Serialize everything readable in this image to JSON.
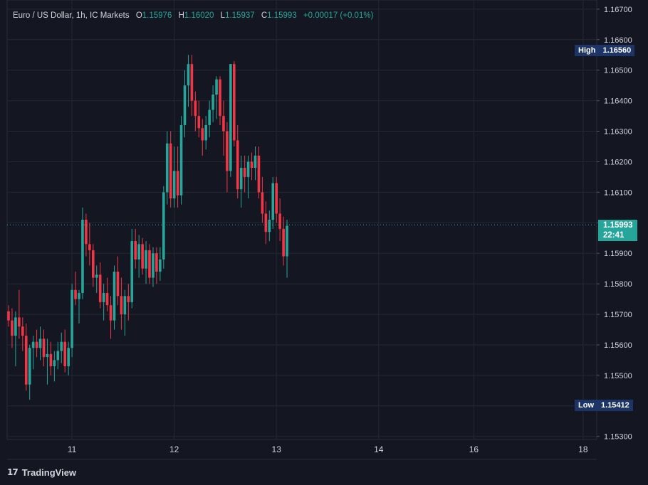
{
  "legend": {
    "symbol": "Euro / US Dollar, 1h, IC Markets",
    "o_key": "O",
    "o_val": "1.15976",
    "h_key": "H",
    "h_val": "1.16020",
    "l_key": "L",
    "l_val": "1.15937",
    "c_key": "C",
    "c_val": "1.15993",
    "change": "+0.00017 (+0.01%)"
  },
  "badges": {
    "high_label": "High",
    "high_value": "1.16560",
    "low_label": "Low",
    "low_value": "1.15412",
    "last_price": "1.15993",
    "countdown": "22:41"
  },
  "footer": {
    "logo_icon": "tradingview-logo-icon",
    "brand": "TradingView"
  },
  "colors": {
    "up": "#26a69a",
    "down": "#f23645",
    "background": "#141722",
    "grid": "#242833",
    "axis_text": "#d1d4dc"
  },
  "chart_data": {
    "type": "candlestick",
    "title": "Euro / US Dollar, 1h, IC Markets",
    "y_tick_labels": [
      "1.15300",
      "1.15400",
      "1.15500",
      "1.15600",
      "1.15700",
      "1.15800",
      "1.15900",
      "1.16000",
      "1.16100",
      "1.16200",
      "1.16300",
      "1.16400",
      "1.16500",
      "1.16600",
      "1.16700"
    ],
    "x_tick_labels": [
      "11",
      "12",
      "13",
      "14",
      "16",
      "18"
    ],
    "x_tick_index": [
      18,
      47,
      76,
      105,
      132,
      163
    ],
    "ylim": [
      1.1529,
      1.1673
    ],
    "current_price": 1.15993,
    "grid": true,
    "candles": [
      [
        1.1571,
        1.1573,
        1.1566,
        1.1568
      ],
      [
        1.1568,
        1.1572,
        1.1559,
        1.1563
      ],
      [
        1.1563,
        1.1571,
        1.1553,
        1.1569
      ],
      [
        1.1569,
        1.1578,
        1.1562,
        1.1566
      ],
      [
        1.1566,
        1.1569,
        1.1558,
        1.1563
      ],
      [
        1.1563,
        1.1567,
        1.1545,
        1.1547
      ],
      [
        1.1547,
        1.156,
        1.1542,
        1.1559
      ],
      [
        1.1559,
        1.1563,
        1.1552,
        1.1561
      ],
      [
        1.1561,
        1.1565,
        1.1556,
        1.1559
      ],
      [
        1.1559,
        1.1566,
        1.1555,
        1.1562
      ],
      [
        1.1562,
        1.1565,
        1.1553,
        1.1556
      ],
      [
        1.1556,
        1.1562,
        1.1547,
        1.1557
      ],
      [
        1.1557,
        1.1561,
        1.155,
        1.1553
      ],
      [
        1.1553,
        1.1558,
        1.1548,
        1.1555
      ],
      [
        1.1555,
        1.1561,
        1.1552,
        1.1558
      ],
      [
        1.1558,
        1.1564,
        1.1554,
        1.1561
      ],
      [
        1.1561,
        1.1565,
        1.1551,
        1.1553
      ],
      [
        1.1553,
        1.1561,
        1.155,
        1.1559
      ],
      [
        1.1559,
        1.158,
        1.1556,
        1.1578
      ],
      [
        1.1578,
        1.1584,
        1.1573,
        1.1575
      ],
      [
        1.1575,
        1.1578,
        1.1567,
        1.1577
      ],
      [
        1.1577,
        1.1605,
        1.1575,
        1.1601
      ],
      [
        1.1601,
        1.1603,
        1.1589,
        1.1593
      ],
      [
        1.1593,
        1.16,
        1.1586,
        1.1591
      ],
      [
        1.1591,
        1.1593,
        1.1579,
        1.1582
      ],
      [
        1.1582,
        1.1586,
        1.1577,
        1.1583
      ],
      [
        1.1583,
        1.1587,
        1.1572,
        1.1574
      ],
      [
        1.1574,
        1.158,
        1.1568,
        1.1577
      ],
      [
        1.1577,
        1.1582,
        1.1571,
        1.1573
      ],
      [
        1.1573,
        1.1576,
        1.1562,
        1.1568
      ],
      [
        1.1568,
        1.1586,
        1.1565,
        1.1584
      ],
      [
        1.1584,
        1.1589,
        1.1573,
        1.1576
      ],
      [
        1.1576,
        1.1582,
        1.1565,
        1.157
      ],
      [
        1.157,
        1.1578,
        1.1563,
        1.1576
      ],
      [
        1.1576,
        1.158,
        1.1568,
        1.1574
      ],
      [
        1.1574,
        1.1598,
        1.1572,
        1.1594
      ],
      [
        1.1594,
        1.1598,
        1.1585,
        1.1588
      ],
      [
        1.1588,
        1.1596,
        1.1582,
        1.1593
      ],
      [
        1.1593,
        1.1595,
        1.1583,
        1.1585
      ],
      [
        1.1585,
        1.1594,
        1.158,
        1.1591
      ],
      [
        1.1591,
        1.1593,
        1.158,
        1.1582
      ],
      [
        1.1582,
        1.1592,
        1.1579,
        1.159
      ],
      [
        1.159,
        1.1592,
        1.158,
        1.1584
      ],
      [
        1.1584,
        1.1592,
        1.1581,
        1.1588
      ],
      [
        1.1588,
        1.1612,
        1.1585,
        1.161
      ],
      [
        1.161,
        1.163,
        1.1606,
        1.1626
      ],
      [
        1.1626,
        1.163,
        1.1605,
        1.1608
      ],
      [
        1.1608,
        1.1625,
        1.1605,
        1.1617
      ],
      [
        1.1617,
        1.1625,
        1.1605,
        1.1609
      ],
      [
        1.1609,
        1.1635,
        1.1606,
        1.1632
      ],
      [
        1.1632,
        1.165,
        1.1628,
        1.1645
      ],
      [
        1.1645,
        1.1655,
        1.1638,
        1.1652
      ],
      [
        1.1652,
        1.1655,
        1.1635,
        1.164
      ],
      [
        1.164,
        1.1643,
        1.163,
        1.1635
      ],
      [
        1.1635,
        1.164,
        1.1628,
        1.1631
      ],
      [
        1.1631,
        1.1634,
        1.1622,
        1.1627
      ],
      [
        1.1627,
        1.1635,
        1.1624,
        1.1632
      ],
      [
        1.1632,
        1.164,
        1.1628,
        1.1637
      ],
      [
        1.1637,
        1.1645,
        1.1633,
        1.1642
      ],
      [
        1.1642,
        1.1648,
        1.1634,
        1.1647
      ],
      [
        1.1647,
        1.1648,
        1.1632,
        1.1635
      ],
      [
        1.1635,
        1.164,
        1.1622,
        1.163
      ],
      [
        1.163,
        1.1633,
        1.161,
        1.1617
      ],
      [
        1.1617,
        1.1652,
        1.1615,
        1.1652
      ],
      [
        1.1652,
        1.1653,
        1.1625,
        1.1627
      ],
      [
        1.1627,
        1.1632,
        1.1608,
        1.1611
      ],
      [
        1.1611,
        1.1622,
        1.1605,
        1.1618
      ],
      [
        1.1618,
        1.1622,
        1.161,
        1.1615
      ],
      [
        1.1615,
        1.1622,
        1.1608,
        1.162
      ],
      [
        1.162,
        1.1623,
        1.1614,
        1.1618
      ],
      [
        1.1618,
        1.1625,
        1.1614,
        1.1622
      ],
      [
        1.1622,
        1.1625,
        1.1608,
        1.161
      ],
      [
        1.161,
        1.1615,
        1.16,
        1.1603
      ],
      [
        1.1603,
        1.1607,
        1.1593,
        1.1597
      ],
      [
        1.1597,
        1.1604,
        1.1594,
        1.1601
      ],
      [
        1.1601,
        1.1615,
        1.1598,
        1.1613
      ],
      [
        1.1613,
        1.1615,
        1.16,
        1.1603
      ],
      [
        1.1603,
        1.1608,
        1.1594,
        1.1598
      ],
      [
        1.1598,
        1.1602,
        1.1586,
        1.1589
      ],
      [
        1.1589,
        1.1601,
        1.1582,
        1.1599
      ]
    ]
  }
}
